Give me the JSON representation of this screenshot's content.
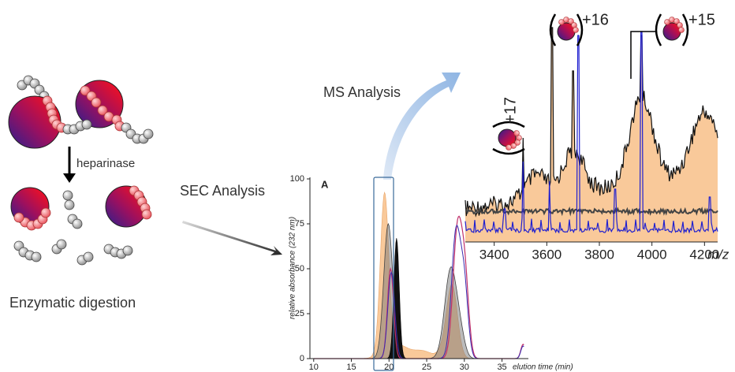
{
  "labels": {
    "heparinase": "heparinase",
    "enzymatic_digestion": "Enzymatic digestion",
    "sec_analysis": "SEC Analysis",
    "ms_analysis": "MS Analysis"
  },
  "sec_chart": {
    "panel_label": "A",
    "y_label": "relative absorbance (232 nm)",
    "x_label": "elution time (min)",
    "ylim": [
      0,
      100
    ],
    "yticks": [
      0,
      25,
      50,
      75,
      100
    ],
    "xlim": [
      9.5,
      38.5
    ],
    "xticks": [
      10,
      15,
      20,
      25,
      30,
      35
    ]
  },
  "ms_chart": {
    "x_label": "m/z",
    "xlim": [
      3290,
      4250
    ],
    "xticks": [
      3400,
      3600,
      3800,
      4000,
      4200
    ],
    "peak_labels": [
      "+17",
      "+16",
      "+15"
    ]
  }
}
